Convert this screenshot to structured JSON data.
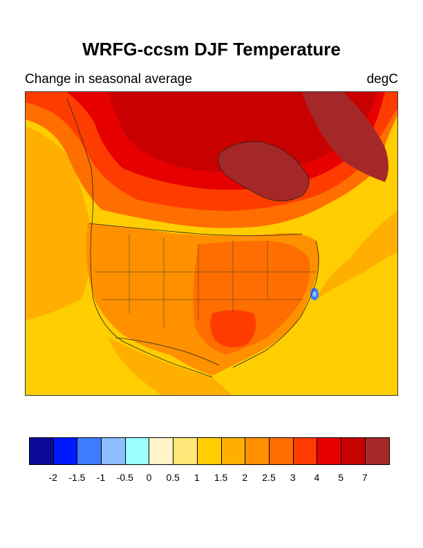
{
  "title": "WRFG-ccsm DJF Temperature",
  "subtitle_left": "Change in seasonal average",
  "units": "degC",
  "colorbar": {
    "colors": [
      "#0a0a96",
      "#0019ff",
      "#3c7dff",
      "#8cbeff",
      "#9bffff",
      "#fff5c8",
      "#ffe678",
      "#ffcd00",
      "#ffaf00",
      "#ff9100",
      "#ff6e00",
      "#ff3c00",
      "#e60000",
      "#c80000",
      "#a52828"
    ],
    "labels": [
      "-2",
      "-1.5",
      "-1",
      "-0.5",
      "0",
      "0.5",
      "1",
      "1.5",
      "2",
      "2.5",
      "3",
      "4",
      "5",
      "7"
    ]
  },
  "map": {
    "region": "North America",
    "field": "temperature change",
    "colors": {
      "ocean_warm": "#ffcd00",
      "ocean_mid": "#ffaf00",
      "land_low": "#ff9100",
      "land_mid": "#ff6e00",
      "land_high": "#ff3c00",
      "north_high": "#e60000",
      "north_max": "#c80000",
      "hudson": "#a52828",
      "anomaly": "#3c7dff"
    }
  }
}
